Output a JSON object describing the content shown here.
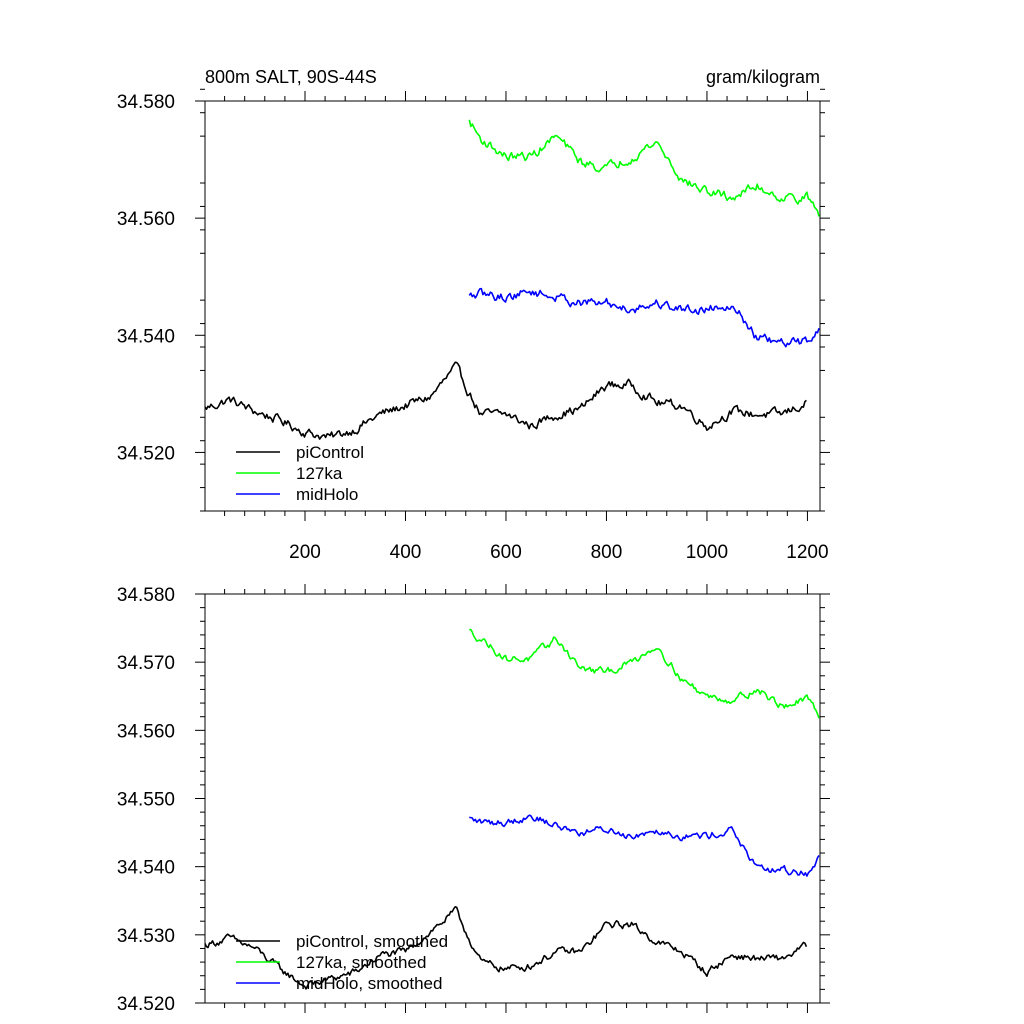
{
  "figure": {
    "title_left": "800m SALT, 90S-44S",
    "title_right": "gram/kilogram"
  },
  "chart_data": [
    {
      "type": "line",
      "title": "800m SALT, 90S-44S",
      "units": "gram/kilogram",
      "xlim": [
        1,
        1225
      ],
      "ylim": [
        34.51,
        34.58
      ],
      "xticks": [
        200,
        400,
        600,
        800,
        1000,
        1200
      ],
      "xtick_labels": [
        "200",
        "400",
        "600",
        "800",
        "1000",
        "1200"
      ],
      "yticks": [
        34.52,
        34.54,
        34.56,
        34.58
      ],
      "ytick_labels": [
        "34.520",
        "34.540",
        "34.560",
        "34.580"
      ],
      "legend": {
        "placement": "bottom-left",
        "entries": [
          "piControl",
          "127ka",
          "midHolo"
        ]
      },
      "series": [
        {
          "name": "piControl",
          "color": "#000000",
          "x": [
            1,
            50,
            100,
            150,
            200,
            250,
            300,
            350,
            400,
            450,
            500,
            550,
            600,
            650,
            700,
            750,
            800,
            850,
            900,
            950,
            1000,
            1050,
            1100,
            1150,
            1200
          ],
          "y": [
            34.5275,
            34.529,
            34.527,
            34.5255,
            34.5235,
            34.5225,
            34.524,
            34.5265,
            34.528,
            34.5295,
            34.5345,
            34.5265,
            34.5265,
            34.5245,
            34.5265,
            34.5275,
            34.5315,
            34.5315,
            34.5285,
            34.528,
            34.5245,
            34.527,
            34.5265,
            34.5265,
            34.5285
          ]
        },
        {
          "name": "127ka",
          "color": "#00ff00",
          "x": [
            527,
            550,
            600,
            650,
            700,
            750,
            800,
            850,
            900,
            950,
            1000,
            1050,
            1100,
            1150,
            1200,
            1225
          ],
          "y": [
            34.5765,
            34.5735,
            34.5705,
            34.5705,
            34.574,
            34.5695,
            34.5685,
            34.5705,
            34.573,
            34.5665,
            34.5645,
            34.5635,
            34.5655,
            34.5635,
            34.5635,
            34.5605
          ]
        },
        {
          "name": "midHolo",
          "color": "#0000ff",
          "x": [
            527,
            550,
            600,
            650,
            700,
            750,
            800,
            850,
            900,
            950,
            1000,
            1050,
            1100,
            1150,
            1200,
            1225
          ],
          "y": [
            34.5465,
            34.547,
            34.5465,
            34.5475,
            34.5465,
            34.5455,
            34.5455,
            34.5445,
            34.5455,
            34.5445,
            34.5445,
            34.5455,
            34.5395,
            34.5385,
            34.539,
            34.5415
          ]
        }
      ]
    },
    {
      "type": "line",
      "xlim": [
        1,
        1225
      ],
      "ylim": [
        34.52,
        34.58
      ],
      "xticks": [
        200,
        400,
        600,
        800,
        1000,
        1200
      ],
      "yticks": [
        34.52,
        34.53,
        34.54,
        34.55,
        34.56,
        34.57,
        34.58
      ],
      "ytick_labels": [
        "34.520",
        "34.530",
        "34.540",
        "34.550",
        "34.560",
        "34.570",
        "34.580"
      ],
      "legend": {
        "placement": "bottom-left",
        "entries": [
          "piControl, smoothed",
          "127ka, smoothed",
          "midHolo, smoothed"
        ]
      },
      "series": [
        {
          "name": "piControl, smoothed",
          "color": "#000000",
          "x": [
            1,
            50,
            100,
            150,
            200,
            250,
            300,
            350,
            400,
            450,
            500,
            550,
            600,
            650,
            700,
            750,
            800,
            850,
            900,
            950,
            1000,
            1050,
            1100,
            1150,
            1200
          ],
          "y": [
            34.5285,
            34.5295,
            34.528,
            34.525,
            34.5225,
            34.5235,
            34.5245,
            34.527,
            34.5275,
            34.5305,
            34.5335,
            34.526,
            34.525,
            34.5255,
            34.5275,
            34.5275,
            34.5315,
            34.5315,
            34.529,
            34.5275,
            34.5245,
            34.527,
            34.5265,
            34.5265,
            34.5285
          ]
        },
        {
          "name": "127ka, smoothed",
          "color": "#00ff00",
          "x": [
            527,
            550,
            600,
            650,
            700,
            750,
            800,
            850,
            900,
            950,
            1000,
            1050,
            1100,
            1150,
            1200,
            1225
          ],
          "y": [
            34.5745,
            34.5735,
            34.5705,
            34.5705,
            34.5735,
            34.569,
            34.5685,
            34.57,
            34.5725,
            34.5675,
            34.565,
            34.5645,
            34.566,
            34.5635,
            34.5645,
            34.562
          ]
        },
        {
          "name": "midHolo, smoothed",
          "color": "#0000ff",
          "x": [
            527,
            550,
            600,
            650,
            700,
            750,
            800,
            850,
            900,
            950,
            1000,
            1050,
            1100,
            1150,
            1200,
            1225
          ],
          "y": [
            34.547,
            34.5465,
            34.5465,
            34.5475,
            34.546,
            34.545,
            34.5455,
            34.5445,
            34.5455,
            34.5445,
            34.5445,
            34.5455,
            34.5395,
            34.5395,
            34.539,
            34.5415
          ]
        }
      ]
    }
  ]
}
